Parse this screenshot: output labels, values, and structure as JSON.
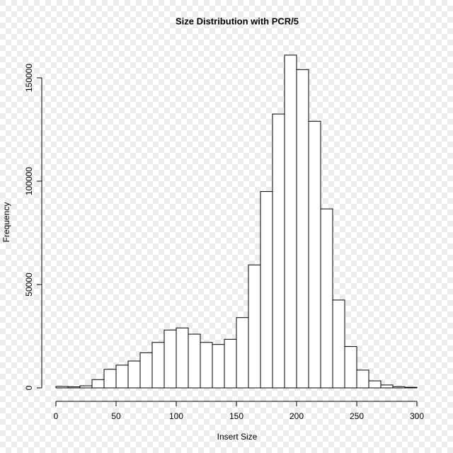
{
  "chart_data": {
    "type": "histogram",
    "title": "Size Distribution with PCR/5",
    "x_label": "Insert Size",
    "y_label": "Frequency",
    "bins": [
      0,
      10,
      20,
      30,
      40,
      50,
      60,
      70,
      80,
      90,
      100,
      110,
      120,
      130,
      140,
      150,
      160,
      170,
      180,
      190,
      200,
      210,
      220,
      230,
      240,
      250,
      260,
      270,
      280,
      290,
      300
    ],
    "values": [
      700,
      500,
      1000,
      4000,
      9000,
      11000,
      13000,
      17000,
      22000,
      28000,
      29000,
      26000,
      22000,
      21000,
      23500,
      34000,
      59500,
      95000,
      132500,
      161000,
      154000,
      129000,
      86600,
      42500,
      20000,
      8600,
      3400,
      1400,
      600,
      300
    ],
    "color": "#ffffff",
    "edge_color": "#000000",
    "xlim": [
      0,
      300
    ],
    "xticks": [
      0,
      50,
      100,
      150,
      200,
      250,
      300
    ],
    "ylim": [
      0,
      150000
    ],
    "yticks": [
      0,
      50000,
      100000,
      150000
    ]
  }
}
